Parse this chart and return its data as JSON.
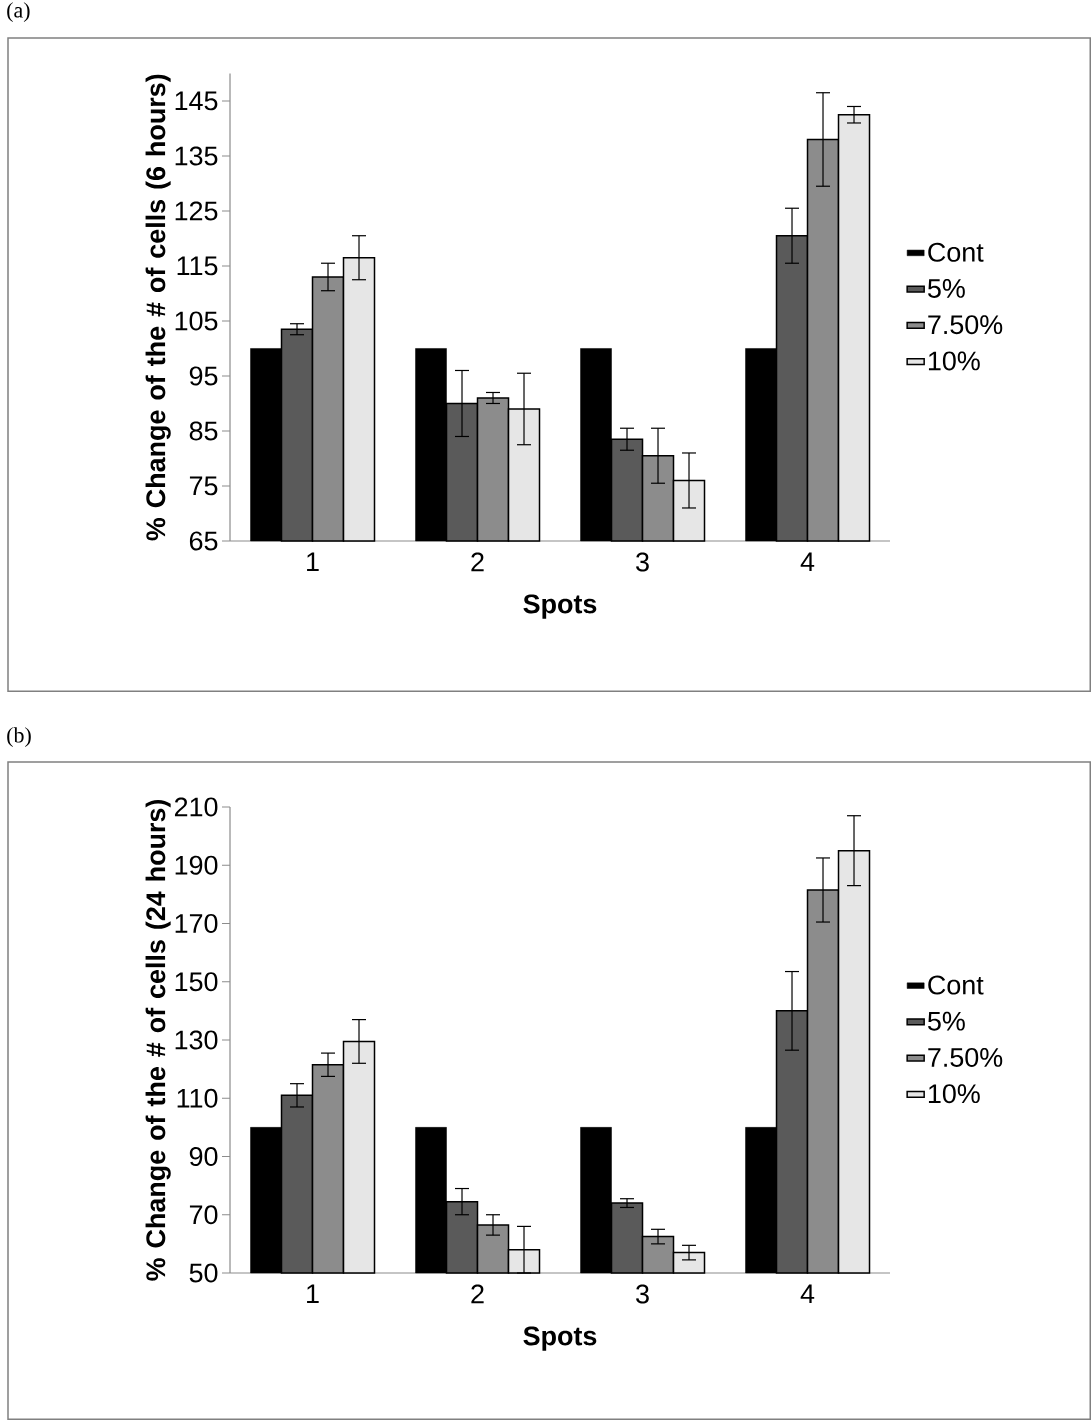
{
  "chart_data": [
    {
      "type": "bar",
      "annotations": [
        "(a)"
      ],
      "xlabel": "Spots",
      "ylabel": "% Change of the # of cells (6 hours)",
      "categories": [
        "1",
        "2",
        "3",
        "4"
      ],
      "ylim": [
        65,
        150
      ],
      "yticks": [
        65,
        75,
        85,
        95,
        105,
        115,
        125,
        135,
        145
      ],
      "legend": "right",
      "series": [
        {
          "name": "Cont",
          "color": "#000000",
          "values": [
            100,
            100,
            100,
            100
          ]
        },
        {
          "name": "5%",
          "color": "#5a5a5a",
          "values": [
            103.5,
            90,
            83.5,
            120.5
          ],
          "errors": [
            1,
            6,
            2,
            5
          ]
        },
        {
          "name": "7.50%",
          "color": "#8c8c8c",
          "values": [
            113,
            91,
            80.5,
            138
          ],
          "errors": [
            2.5,
            1,
            5,
            8.5
          ]
        },
        {
          "name": "10%",
          "color": "#e6e6e6",
          "values": [
            116.5,
            89,
            76,
            142.5
          ],
          "errors": [
            4,
            6.5,
            5,
            1.5
          ]
        }
      ]
    },
    {
      "type": "bar",
      "annotations": [
        "(b)"
      ],
      "xlabel": "Spots",
      "ylabel": "% Change of the # of cells (24 hours)",
      "categories": [
        "1",
        "2",
        "3",
        "4"
      ],
      "ylim": [
        50,
        210
      ],
      "yticks": [
        50,
        70,
        90,
        110,
        130,
        150,
        170,
        190,
        210
      ],
      "legend": "right",
      "series": [
        {
          "name": "Cont",
          "color": "#000000",
          "values": [
            100,
            100,
            100,
            100
          ]
        },
        {
          "name": "5%",
          "color": "#5a5a5a",
          "values": [
            111,
            74.5,
            74,
            140
          ],
          "errors": [
            4,
            4.5,
            1.5,
            13.5
          ]
        },
        {
          "name": "7.50%",
          "color": "#8c8c8c",
          "values": [
            121.5,
            66.5,
            62.5,
            181.5
          ],
          "errors": [
            4,
            3.5,
            2.5,
            11
          ]
        },
        {
          "name": "10%",
          "color": "#e6e6e6",
          "values": [
            129.5,
            58,
            57,
            195
          ],
          "errors": [
            7.5,
            8,
            2.5,
            12
          ]
        }
      ]
    }
  ]
}
